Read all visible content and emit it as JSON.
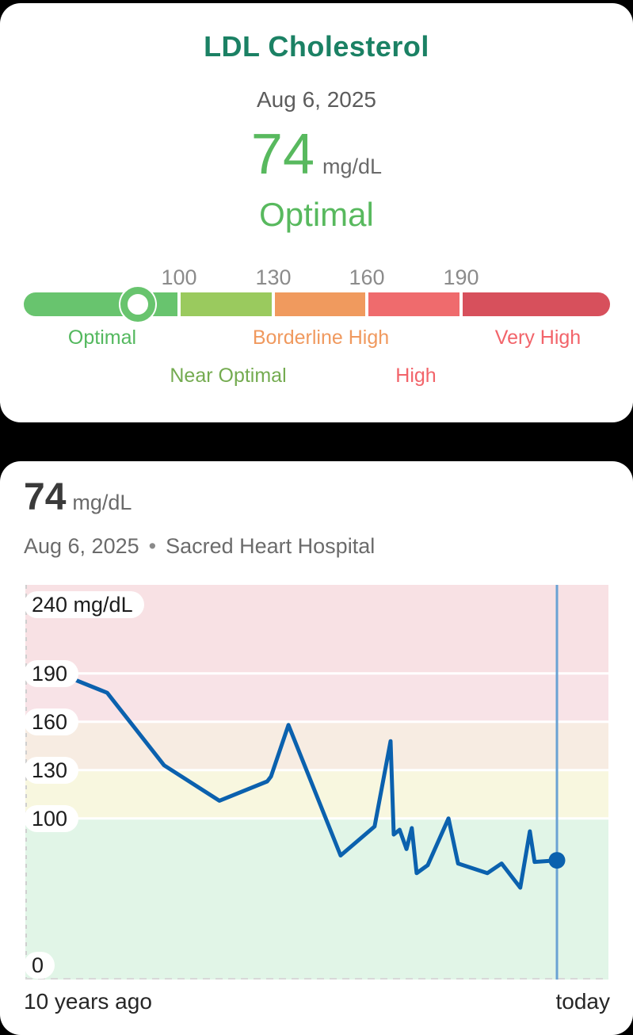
{
  "card1": {
    "title": "LDL Cholesterol",
    "date": "Aug 6, 2025",
    "value": "74",
    "unit": "mg/dL",
    "status": "Optimal",
    "scale": {
      "ticks": [
        "100",
        "130",
        "160",
        "190"
      ],
      "marker_value": 74,
      "segments": [
        {
          "label": "Optimal",
          "color": "#68c46e",
          "label_color": "#53b85e"
        },
        {
          "label": "Near Optimal",
          "color": "#9aca5e",
          "label_color": "#74ab50"
        },
        {
          "label": "Borderline High",
          "color": "#f09a5e",
          "label_color": "#f0995e"
        },
        {
          "label": "High",
          "color": "#ef6b6d",
          "label_color": "#f2646a"
        },
        {
          "label": "Very High",
          "color": "#d7505c",
          "label_color": "#f2646a"
        }
      ]
    }
  },
  "card2": {
    "value": "74",
    "unit": "mg/dL",
    "date": "Aug 6, 2025",
    "separator": "•",
    "source": "Sacred Heart Hospital",
    "x_left_label": "10 years ago",
    "x_right_label": "today"
  },
  "chart_data": {
    "type": "line",
    "title": "LDL Cholesterol over 10 years",
    "unit": "mg/dL",
    "y_top_label": "240 mg/dL",
    "y_ticks": [
      240,
      190,
      160,
      130,
      100,
      0
    ],
    "y_max": 245,
    "x_range": [
      "10 years ago",
      "today"
    ],
    "grid": true,
    "line_color": "#0b61ae",
    "today_line_color": "#6aa2d3",
    "zones": [
      {
        "from": 190,
        "to": 245,
        "name": "very-high",
        "color": "#f8e1e4"
      },
      {
        "from": 160,
        "to": 190,
        "name": "high",
        "color": "#f8e3e7"
      },
      {
        "from": 130,
        "to": 160,
        "name": "borderline",
        "color": "#f7ece2"
      },
      {
        "from": 100,
        "to": 130,
        "name": "near-optimal",
        "color": "#f8f7df"
      },
      {
        "from": 0,
        "to": 100,
        "name": "optimal",
        "color": "#e1f5e7"
      }
    ],
    "points": [
      {
        "t": 0.079,
        "v": 188
      },
      {
        "t": 0.154,
        "v": 178
      },
      {
        "t": 0.261,
        "v": 133
      },
      {
        "t": 0.365,
        "v": 111
      },
      {
        "t": 0.455,
        "v": 123
      },
      {
        "t": 0.462,
        "v": 126
      },
      {
        "t": 0.495,
        "v": 158
      },
      {
        "t": 0.593,
        "v": 77
      },
      {
        "t": 0.657,
        "v": 95
      },
      {
        "t": 0.687,
        "v": 148
      },
      {
        "t": 0.693,
        "v": 90
      },
      {
        "t": 0.704,
        "v": 93
      },
      {
        "t": 0.717,
        "v": 81
      },
      {
        "t": 0.727,
        "v": 94
      },
      {
        "t": 0.736,
        "v": 66
      },
      {
        "t": 0.757,
        "v": 71
      },
      {
        "t": 0.796,
        "v": 100
      },
      {
        "t": 0.814,
        "v": 72
      },
      {
        "t": 0.869,
        "v": 66
      },
      {
        "t": 0.896,
        "v": 72
      },
      {
        "t": 0.931,
        "v": 57
      },
      {
        "t": 0.949,
        "v": 92
      },
      {
        "t": 0.958,
        "v": 73
      },
      {
        "t": 1.0,
        "v": 74
      }
    ]
  }
}
